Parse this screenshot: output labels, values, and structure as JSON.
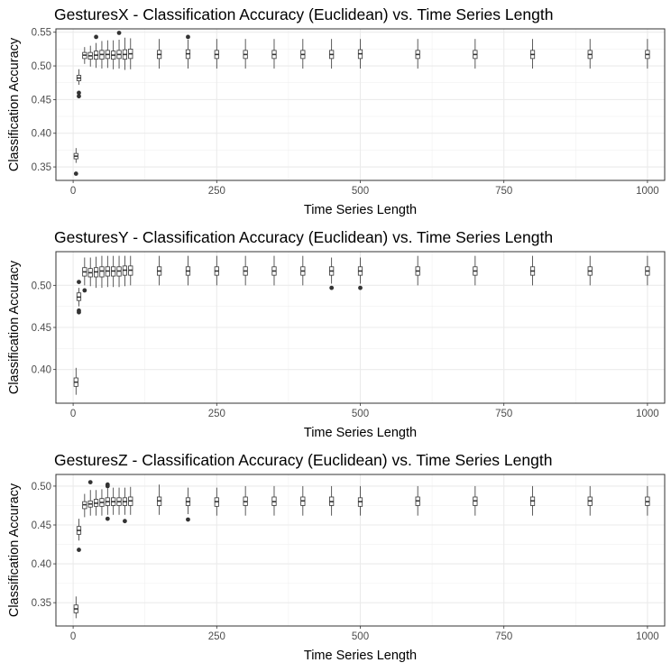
{
  "chart_data": [
    {
      "type": "box",
      "title": "GesturesX - Classification Accuracy (Euclidean) vs. Time Series Length",
      "xlabel": "Time Series Length",
      "ylabel": "Classification Accuracy",
      "xlim": [
        -30,
        1030
      ],
      "ylim": [
        0.33,
        0.555
      ],
      "xticks": [
        0,
        250,
        500,
        750,
        1000
      ],
      "xtick_labels": [
        "0",
        "250",
        "500",
        "750",
        "1000"
      ],
      "yticks": [
        0.35,
        0.4,
        0.45,
        0.5,
        0.55
      ],
      "ytick_labels": [
        "0.35",
        "0.40",
        "0.45",
        "0.50",
        "0.55"
      ],
      "grid": true,
      "boxes": [
        {
          "x": 5,
          "whisker_low": 0.356,
          "q1": 0.362,
          "median": 0.366,
          "q3": 0.37,
          "whisker_high": 0.378,
          "outliers": [
            0.34
          ]
        },
        {
          "x": 10,
          "whisker_low": 0.472,
          "q1": 0.478,
          "median": 0.482,
          "q3": 0.486,
          "whisker_high": 0.495,
          "outliers": [
            0.455,
            0.46
          ]
        },
        {
          "x": 20,
          "whisker_low": 0.503,
          "q1": 0.511,
          "median": 0.516,
          "q3": 0.52,
          "whisker_high": 0.528,
          "outliers": []
        },
        {
          "x": 30,
          "whisker_low": 0.499,
          "q1": 0.51,
          "median": 0.515,
          "q3": 0.52,
          "whisker_high": 0.53,
          "outliers": []
        },
        {
          "x": 40,
          "whisker_low": 0.497,
          "q1": 0.51,
          "median": 0.516,
          "q3": 0.522,
          "whisker_high": 0.534,
          "outliers": [
            0.543
          ]
        },
        {
          "x": 50,
          "whisker_low": 0.496,
          "q1": 0.51,
          "median": 0.517,
          "q3": 0.523,
          "whisker_high": 0.537,
          "outliers": []
        },
        {
          "x": 60,
          "whisker_low": 0.497,
          "q1": 0.511,
          "median": 0.517,
          "q3": 0.523,
          "whisker_high": 0.538,
          "outliers": []
        },
        {
          "x": 70,
          "whisker_low": 0.495,
          "q1": 0.51,
          "median": 0.516,
          "q3": 0.522,
          "whisker_high": 0.538,
          "outliers": []
        },
        {
          "x": 80,
          "whisker_low": 0.496,
          "q1": 0.511,
          "median": 0.517,
          "q3": 0.523,
          "whisker_high": 0.539,
          "outliers": [
            0.549
          ]
        },
        {
          "x": 90,
          "whisker_low": 0.494,
          "q1": 0.51,
          "median": 0.517,
          "q3": 0.524,
          "whisker_high": 0.542,
          "outliers": []
        },
        {
          "x": 100,
          "whisker_low": 0.495,
          "q1": 0.511,
          "median": 0.518,
          "q3": 0.525,
          "whisker_high": 0.541,
          "outliers": []
        },
        {
          "x": 150,
          "whisker_low": 0.496,
          "q1": 0.511,
          "median": 0.517,
          "q3": 0.523,
          "whisker_high": 0.54,
          "outliers": []
        },
        {
          "x": 200,
          "whisker_low": 0.496,
          "q1": 0.511,
          "median": 0.518,
          "q3": 0.524,
          "whisker_high": 0.539,
          "outliers": [
            0.543
          ]
        },
        {
          "x": 250,
          "whisker_low": 0.496,
          "q1": 0.511,
          "median": 0.517,
          "q3": 0.523,
          "whisker_high": 0.54,
          "outliers": []
        },
        {
          "x": 300,
          "whisker_low": 0.496,
          "q1": 0.511,
          "median": 0.517,
          "q3": 0.523,
          "whisker_high": 0.54,
          "outliers": []
        },
        {
          "x": 350,
          "whisker_low": 0.496,
          "q1": 0.511,
          "median": 0.517,
          "q3": 0.523,
          "whisker_high": 0.54,
          "outliers": []
        },
        {
          "x": 400,
          "whisker_low": 0.496,
          "q1": 0.511,
          "median": 0.517,
          "q3": 0.523,
          "whisker_high": 0.54,
          "outliers": []
        },
        {
          "x": 450,
          "whisker_low": 0.496,
          "q1": 0.511,
          "median": 0.517,
          "q3": 0.523,
          "whisker_high": 0.54,
          "outliers": []
        },
        {
          "x": 500,
          "whisker_low": 0.496,
          "q1": 0.511,
          "median": 0.518,
          "q3": 0.524,
          "whisker_high": 0.54,
          "outliers": []
        },
        {
          "x": 600,
          "whisker_low": 0.496,
          "q1": 0.511,
          "median": 0.517,
          "q3": 0.523,
          "whisker_high": 0.54,
          "outliers": []
        },
        {
          "x": 700,
          "whisker_low": 0.496,
          "q1": 0.511,
          "median": 0.517,
          "q3": 0.523,
          "whisker_high": 0.54,
          "outliers": []
        },
        {
          "x": 800,
          "whisker_low": 0.496,
          "q1": 0.511,
          "median": 0.517,
          "q3": 0.523,
          "whisker_high": 0.54,
          "outliers": []
        },
        {
          "x": 900,
          "whisker_low": 0.496,
          "q1": 0.511,
          "median": 0.517,
          "q3": 0.523,
          "whisker_high": 0.54,
          "outliers": []
        },
        {
          "x": 1000,
          "whisker_low": 0.496,
          "q1": 0.511,
          "median": 0.517,
          "q3": 0.523,
          "whisker_high": 0.54,
          "outliers": []
        }
      ]
    },
    {
      "type": "box",
      "title": "GesturesY - Classification Accuracy (Euclidean) vs. Time Series Length",
      "xlabel": "Time Series Length",
      "ylabel": "Classification Accuracy",
      "xlim": [
        -30,
        1030
      ],
      "ylim": [
        0.36,
        0.54
      ],
      "xticks": [
        0,
        250,
        500,
        750,
        1000
      ],
      "xtick_labels": [
        "0",
        "250",
        "500",
        "750",
        "1000"
      ],
      "yticks": [
        0.4,
        0.45,
        0.5
      ],
      "ytick_labels": [
        "0.40",
        "0.45",
        "0.50"
      ],
      "grid": true,
      "boxes": [
        {
          "x": 5,
          "whisker_low": 0.37,
          "q1": 0.38,
          "median": 0.385,
          "q3": 0.39,
          "whisker_high": 0.402,
          "outliers": []
        },
        {
          "x": 10,
          "whisker_low": 0.475,
          "q1": 0.482,
          "median": 0.486,
          "q3": 0.491,
          "whisker_high": 0.497,
          "outliers": [
            0.468,
            0.47,
            0.504
          ]
        },
        {
          "x": 20,
          "whisker_low": 0.5,
          "q1": 0.511,
          "median": 0.516,
          "q3": 0.521,
          "whisker_high": 0.533,
          "outliers": [
            0.494
          ]
        },
        {
          "x": 30,
          "whisker_low": 0.499,
          "q1": 0.51,
          "median": 0.515,
          "q3": 0.52,
          "whisker_high": 0.533,
          "outliers": []
        },
        {
          "x": 40,
          "whisker_low": 0.497,
          "q1": 0.51,
          "median": 0.516,
          "q3": 0.521,
          "whisker_high": 0.534,
          "outliers": []
        },
        {
          "x": 50,
          "whisker_low": 0.497,
          "q1": 0.51,
          "median": 0.517,
          "q3": 0.522,
          "whisker_high": 0.535,
          "outliers": []
        },
        {
          "x": 60,
          "whisker_low": 0.498,
          "q1": 0.511,
          "median": 0.517,
          "q3": 0.522,
          "whisker_high": 0.535,
          "outliers": []
        },
        {
          "x": 70,
          "whisker_low": 0.498,
          "q1": 0.511,
          "median": 0.517,
          "q3": 0.522,
          "whisker_high": 0.535,
          "outliers": []
        },
        {
          "x": 80,
          "whisker_low": 0.498,
          "q1": 0.511,
          "median": 0.517,
          "q3": 0.522,
          "whisker_high": 0.535,
          "outliers": []
        },
        {
          "x": 90,
          "whisker_low": 0.499,
          "q1": 0.512,
          "median": 0.518,
          "q3": 0.523,
          "whisker_high": 0.535,
          "outliers": []
        },
        {
          "x": 100,
          "whisker_low": 0.5,
          "q1": 0.512,
          "median": 0.518,
          "q3": 0.523,
          "whisker_high": 0.535,
          "outliers": []
        },
        {
          "x": 150,
          "whisker_low": 0.5,
          "q1": 0.512,
          "median": 0.517,
          "q3": 0.522,
          "whisker_high": 0.535,
          "outliers": []
        },
        {
          "x": 200,
          "whisker_low": 0.5,
          "q1": 0.512,
          "median": 0.517,
          "q3": 0.522,
          "whisker_high": 0.535,
          "outliers": []
        },
        {
          "x": 250,
          "whisker_low": 0.5,
          "q1": 0.512,
          "median": 0.517,
          "q3": 0.522,
          "whisker_high": 0.535,
          "outliers": []
        },
        {
          "x": 300,
          "whisker_low": 0.5,
          "q1": 0.512,
          "median": 0.517,
          "q3": 0.522,
          "whisker_high": 0.535,
          "outliers": []
        },
        {
          "x": 350,
          "whisker_low": 0.5,
          "q1": 0.512,
          "median": 0.517,
          "q3": 0.522,
          "whisker_high": 0.535,
          "outliers": []
        },
        {
          "x": 400,
          "whisker_low": 0.5,
          "q1": 0.512,
          "median": 0.517,
          "q3": 0.522,
          "whisker_high": 0.535,
          "outliers": []
        },
        {
          "x": 450,
          "whisker_low": 0.502,
          "q1": 0.512,
          "median": 0.517,
          "q3": 0.522,
          "whisker_high": 0.533,
          "outliers": [
            0.497
          ]
        },
        {
          "x": 500,
          "whisker_low": 0.502,
          "q1": 0.512,
          "median": 0.517,
          "q3": 0.522,
          "whisker_high": 0.533,
          "outliers": [
            0.497
          ]
        },
        {
          "x": 600,
          "whisker_low": 0.5,
          "q1": 0.512,
          "median": 0.517,
          "q3": 0.522,
          "whisker_high": 0.535,
          "outliers": []
        },
        {
          "x": 700,
          "whisker_low": 0.5,
          "q1": 0.512,
          "median": 0.517,
          "q3": 0.522,
          "whisker_high": 0.535,
          "outliers": []
        },
        {
          "x": 800,
          "whisker_low": 0.5,
          "q1": 0.512,
          "median": 0.517,
          "q3": 0.522,
          "whisker_high": 0.535,
          "outliers": []
        },
        {
          "x": 900,
          "whisker_low": 0.5,
          "q1": 0.512,
          "median": 0.517,
          "q3": 0.522,
          "whisker_high": 0.535,
          "outliers": []
        },
        {
          "x": 1000,
          "whisker_low": 0.5,
          "q1": 0.512,
          "median": 0.517,
          "q3": 0.522,
          "whisker_high": 0.535,
          "outliers": []
        }
      ]
    },
    {
      "type": "box",
      "title": "GesturesZ - Classification Accuracy (Euclidean) vs. Time Series Length",
      "xlabel": "Time Series Length",
      "ylabel": "Classification Accuracy",
      "xlim": [
        -30,
        1030
      ],
      "ylim": [
        0.32,
        0.515
      ],
      "xticks": [
        0,
        250,
        500,
        750,
        1000
      ],
      "xtick_labels": [
        "0",
        "250",
        "500",
        "750",
        "1000"
      ],
      "yticks": [
        0.35,
        0.4,
        0.45,
        0.5
      ],
      "ytick_labels": [
        "0.35",
        "0.40",
        "0.45",
        "0.50"
      ],
      "grid": true,
      "boxes": [
        {
          "x": 5,
          "whisker_low": 0.33,
          "q1": 0.337,
          "median": 0.342,
          "q3": 0.347,
          "whisker_high": 0.358,
          "outliers": []
        },
        {
          "x": 10,
          "whisker_low": 0.43,
          "q1": 0.438,
          "median": 0.443,
          "q3": 0.448,
          "whisker_high": 0.458,
          "outliers": [
            0.418
          ]
        },
        {
          "x": 20,
          "whisker_low": 0.46,
          "q1": 0.471,
          "median": 0.476,
          "q3": 0.48,
          "whisker_high": 0.49,
          "outliers": []
        },
        {
          "x": 30,
          "whisker_low": 0.462,
          "q1": 0.473,
          "median": 0.477,
          "q3": 0.481,
          "whisker_high": 0.495,
          "outliers": [
            0.505
          ]
        },
        {
          "x": 40,
          "whisker_low": 0.462,
          "q1": 0.474,
          "median": 0.478,
          "q3": 0.483,
          "whisker_high": 0.495,
          "outliers": []
        },
        {
          "x": 50,
          "whisker_low": 0.462,
          "q1": 0.474,
          "median": 0.479,
          "q3": 0.484,
          "whisker_high": 0.496,
          "outliers": []
        },
        {
          "x": 60,
          "whisker_low": 0.463,
          "q1": 0.475,
          "median": 0.48,
          "q3": 0.485,
          "whisker_high": 0.497,
          "outliers": [
            0.458,
            0.5,
            0.502
          ]
        },
        {
          "x": 70,
          "whisker_low": 0.463,
          "q1": 0.475,
          "median": 0.48,
          "q3": 0.485,
          "whisker_high": 0.498,
          "outliers": []
        },
        {
          "x": 80,
          "whisker_low": 0.463,
          "q1": 0.475,
          "median": 0.48,
          "q3": 0.485,
          "whisker_high": 0.498,
          "outliers": []
        },
        {
          "x": 90,
          "whisker_low": 0.463,
          "q1": 0.475,
          "median": 0.48,
          "q3": 0.485,
          "whisker_high": 0.498,
          "outliers": [
            0.455
          ]
        },
        {
          "x": 100,
          "whisker_low": 0.463,
          "q1": 0.475,
          "median": 0.481,
          "q3": 0.486,
          "whisker_high": 0.499,
          "outliers": []
        },
        {
          "x": 150,
          "whisker_low": 0.463,
          "q1": 0.475,
          "median": 0.481,
          "q3": 0.486,
          "whisker_high": 0.502,
          "outliers": []
        },
        {
          "x": 200,
          "whisker_low": 0.464,
          "q1": 0.475,
          "median": 0.48,
          "q3": 0.485,
          "whisker_high": 0.498,
          "outliers": [
            0.457
          ]
        },
        {
          "x": 250,
          "whisker_low": 0.462,
          "q1": 0.474,
          "median": 0.48,
          "q3": 0.485,
          "whisker_high": 0.498,
          "outliers": []
        },
        {
          "x": 300,
          "whisker_low": 0.462,
          "q1": 0.475,
          "median": 0.48,
          "q3": 0.486,
          "whisker_high": 0.5,
          "outliers": []
        },
        {
          "x": 350,
          "whisker_low": 0.462,
          "q1": 0.475,
          "median": 0.48,
          "q3": 0.486,
          "whisker_high": 0.5,
          "outliers": []
        },
        {
          "x": 400,
          "whisker_low": 0.462,
          "q1": 0.475,
          "median": 0.481,
          "q3": 0.486,
          "whisker_high": 0.5,
          "outliers": []
        },
        {
          "x": 450,
          "whisker_low": 0.462,
          "q1": 0.475,
          "median": 0.48,
          "q3": 0.486,
          "whisker_high": 0.5,
          "outliers": []
        },
        {
          "x": 500,
          "whisker_low": 0.462,
          "q1": 0.474,
          "median": 0.48,
          "q3": 0.485,
          "whisker_high": 0.5,
          "outliers": []
        },
        {
          "x": 600,
          "whisker_low": 0.462,
          "q1": 0.475,
          "median": 0.481,
          "q3": 0.486,
          "whisker_high": 0.5,
          "outliers": []
        },
        {
          "x": 700,
          "whisker_low": 0.462,
          "q1": 0.475,
          "median": 0.481,
          "q3": 0.486,
          "whisker_high": 0.5,
          "outliers": []
        },
        {
          "x": 800,
          "whisker_low": 0.462,
          "q1": 0.475,
          "median": 0.481,
          "q3": 0.486,
          "whisker_high": 0.5,
          "outliers": []
        },
        {
          "x": 900,
          "whisker_low": 0.462,
          "q1": 0.475,
          "median": 0.481,
          "q3": 0.486,
          "whisker_high": 0.5,
          "outliers": []
        },
        {
          "x": 1000,
          "whisker_low": 0.462,
          "q1": 0.475,
          "median": 0.48,
          "q3": 0.486,
          "whisker_high": 0.5,
          "outliers": []
        }
      ]
    }
  ]
}
